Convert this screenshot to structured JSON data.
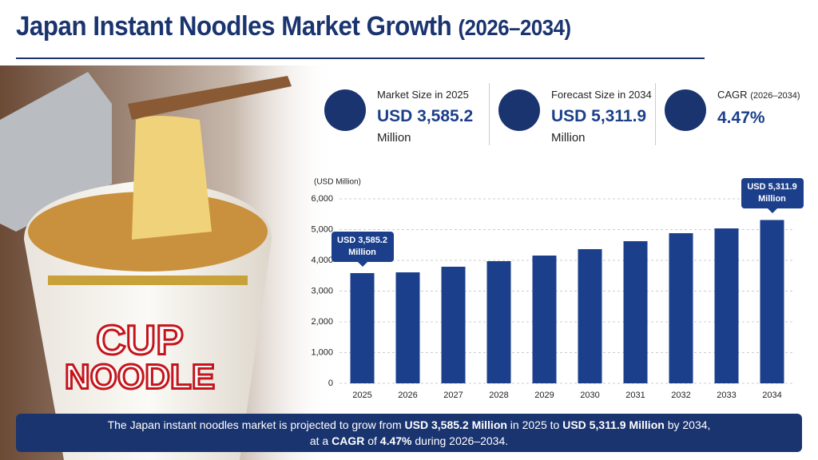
{
  "header": {
    "title": "Japan Instant Noodles Market Growth",
    "title_suffix": "(2026–2034)"
  },
  "kpis": [
    {
      "label": "Market Size in 2025",
      "value": "USD 3,585.2",
      "unit": "Million"
    },
    {
      "label": "Forecast Size in 2034",
      "value": "USD 5,311.9",
      "unit": "Million"
    },
    {
      "label": "CAGR",
      "sublabel": "(2026–2034)",
      "value": "4.47%"
    }
  ],
  "photo": {
    "cup_text": [
      "CUP",
      "NOODLE"
    ]
  },
  "chart_data": {
    "type": "bar",
    "y_label": "(USD Million)",
    "categories": [
      "2025",
      "2026",
      "2027",
      "2028",
      "2029",
      "2030",
      "2031",
      "2032",
      "2033",
      "2034"
    ],
    "values": [
      3585.2,
      3610,
      3792,
      3974,
      4156,
      4364,
      4623,
      4883,
      5039,
      5311.9
    ],
    "value_labels": [
      "USD 3,585.2 Million",
      null,
      null,
      null,
      null,
      null,
      null,
      null,
      null,
      "USD 5,311.9 Million"
    ],
    "color": "#1b3f8b",
    "ylim": [
      0,
      6000
    ],
    "yticks": [
      0,
      {
        "value": 1000,
        "label": "1,000"
      },
      {
        "value": 2000,
        "label": "2,000"
      },
      {
        "value": 3000,
        "label": "3,000"
      },
      {
        "value": 4000,
        "label": "4,000"
      },
      {
        "value": 5000,
        "label": "5,000"
      },
      {
        "value": 6000,
        "label": "6,000"
      }
    ],
    "grid": true
  },
  "footer": {
    "lines": [
      [
        {
          "text": "The Japan instant noodles market is projected to grow from "
        },
        {
          "text": "USD 3,585.2 Million",
          "bold": true
        },
        {
          "text": " in 2025 to "
        },
        {
          "text": "USD 5,311.9 Million",
          "bold": true
        },
        {
          "text": " by 2034,"
        }
      ],
      [
        {
          "text": "at a "
        },
        {
          "text": "CAGR",
          "bold": true
        },
        {
          "text": " of "
        },
        {
          "text": "4.47%",
          "bold": true
        },
        {
          "text": " during 2026–2034."
        }
      ]
    ]
  }
}
